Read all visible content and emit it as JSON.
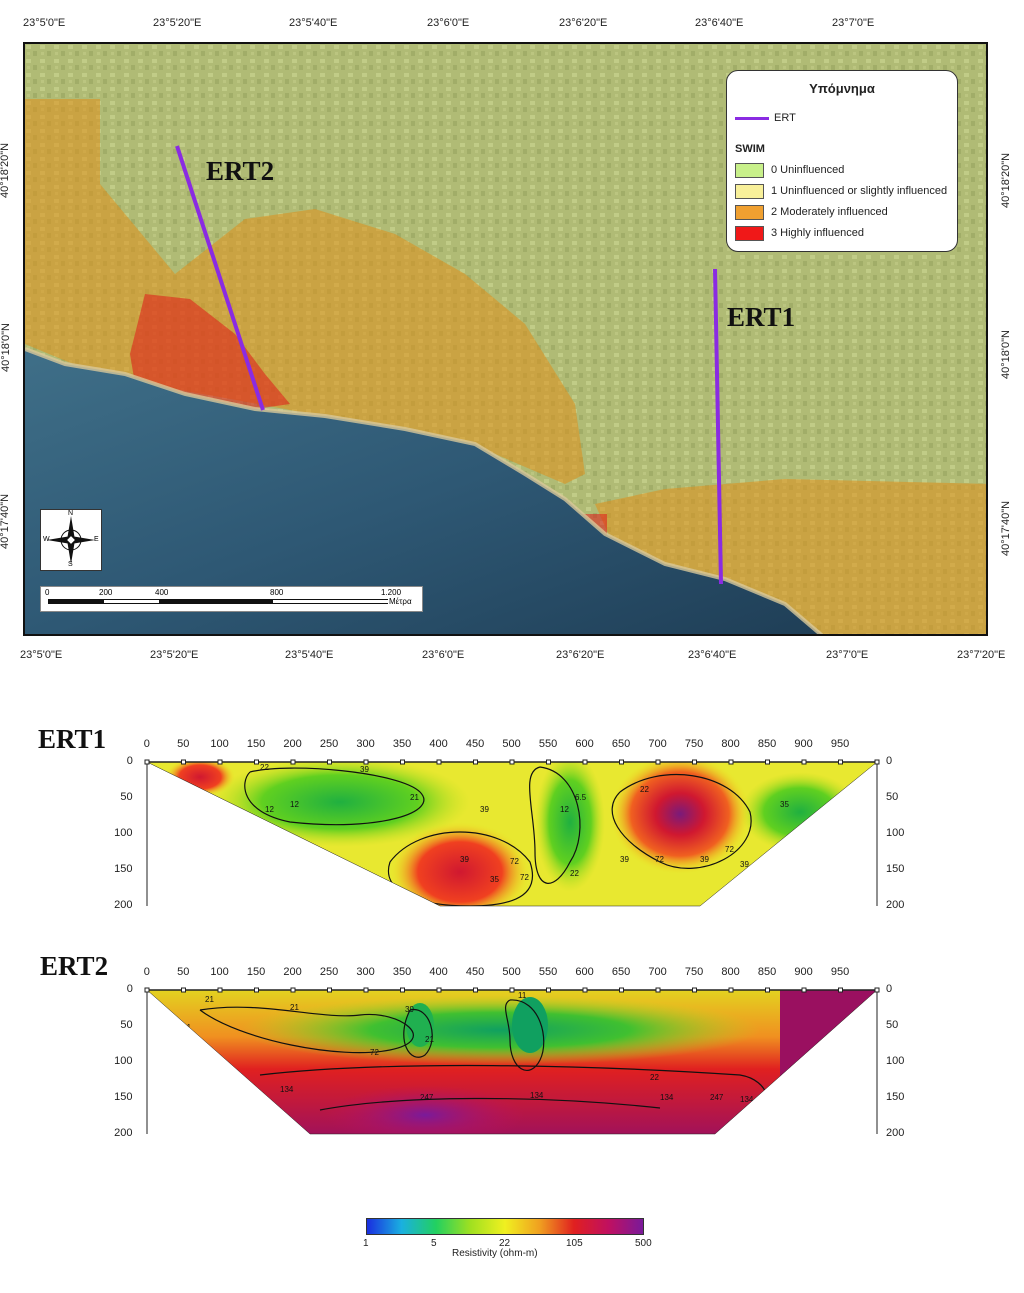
{
  "map": {
    "top_lon_labels": [
      "23°5'0\"E",
      "23°5'20\"E",
      "23°5'40\"E",
      "23°6'0\"E",
      "23°6'20\"E",
      "23°6'40\"E",
      "23°7'0\"E"
    ],
    "bottom_lon_labels": [
      "23°5'0\"E",
      "23°5'20\"E",
      "23°5'40\"E",
      "23°6'0\"E",
      "23°6'20\"E",
      "23°6'40\"E",
      "23°7'0\"E",
      "23°7'20\"E"
    ],
    "left_lat_labels": [
      "40°18'20\"N",
      "40°18'0\"N",
      "40°17'40\"N"
    ],
    "right_lat_labels": [
      "40°18'20\"N",
      "40°18'0\"N",
      "40°17'40\"N"
    ],
    "ert1_label": "ERT1",
    "ert2_label": "ERT2",
    "legend": {
      "title": "Υπόμνημα",
      "ert_item": "ERT",
      "swim_heading": "SWIM",
      "items": [
        {
          "label": "0  Uninfluenced",
          "color": "#c8f08a"
        },
        {
          "label": "1  Uninfluenced or slightly influenced",
          "color": "#f8f09a"
        },
        {
          "label": "2  Moderately influenced",
          "color": "#f0a030"
        },
        {
          "label": "3  Highly influenced",
          "color": "#f01818"
        }
      ],
      "ert_color": "#8a2be2"
    },
    "scalebar": {
      "ticks": [
        "0",
        "200",
        "400",
        "800",
        "1.200"
      ],
      "unit": "Μέτρα"
    },
    "compass": {
      "n": "N",
      "s": "S",
      "e": "E",
      "w": "W"
    }
  },
  "profiles": {
    "x_ticks": [
      "0",
      "50",
      "100",
      "150",
      "200",
      "250",
      "300",
      "350",
      "400",
      "450",
      "500",
      "550",
      "600",
      "650",
      "700",
      "750",
      "800",
      "850",
      "900",
      "950"
    ],
    "y_ticks": [
      "0",
      "50",
      "100",
      "150",
      "200"
    ],
    "ert1": {
      "title": "ERT1",
      "contour_labels": [
        "22",
        "39",
        "12",
        "21",
        "12",
        "39",
        "72",
        "35",
        "72",
        "39",
        "12",
        "22",
        "6.5",
        "39",
        "72",
        "39",
        "35",
        "72",
        "39",
        "22"
      ]
    },
    "ert2": {
      "title": "ERT2",
      "contour_labels": [
        "21",
        "7.1",
        "21",
        "39",
        "21",
        "11",
        "72",
        "134",
        "247",
        "134",
        "22",
        "134",
        "247",
        "134"
      ]
    }
  },
  "colorbar": {
    "tick_labels": [
      "1",
      "5",
      "22",
      "105",
      "500"
    ],
    "label": "Resistivity (ohm-m)",
    "colors": [
      "#1a2ee0",
      "#1ab0e0",
      "#22d060",
      "#a0e020",
      "#f0f020",
      "#f0a020",
      "#e02020",
      "#c01060",
      "#7a1a9a"
    ]
  }
}
